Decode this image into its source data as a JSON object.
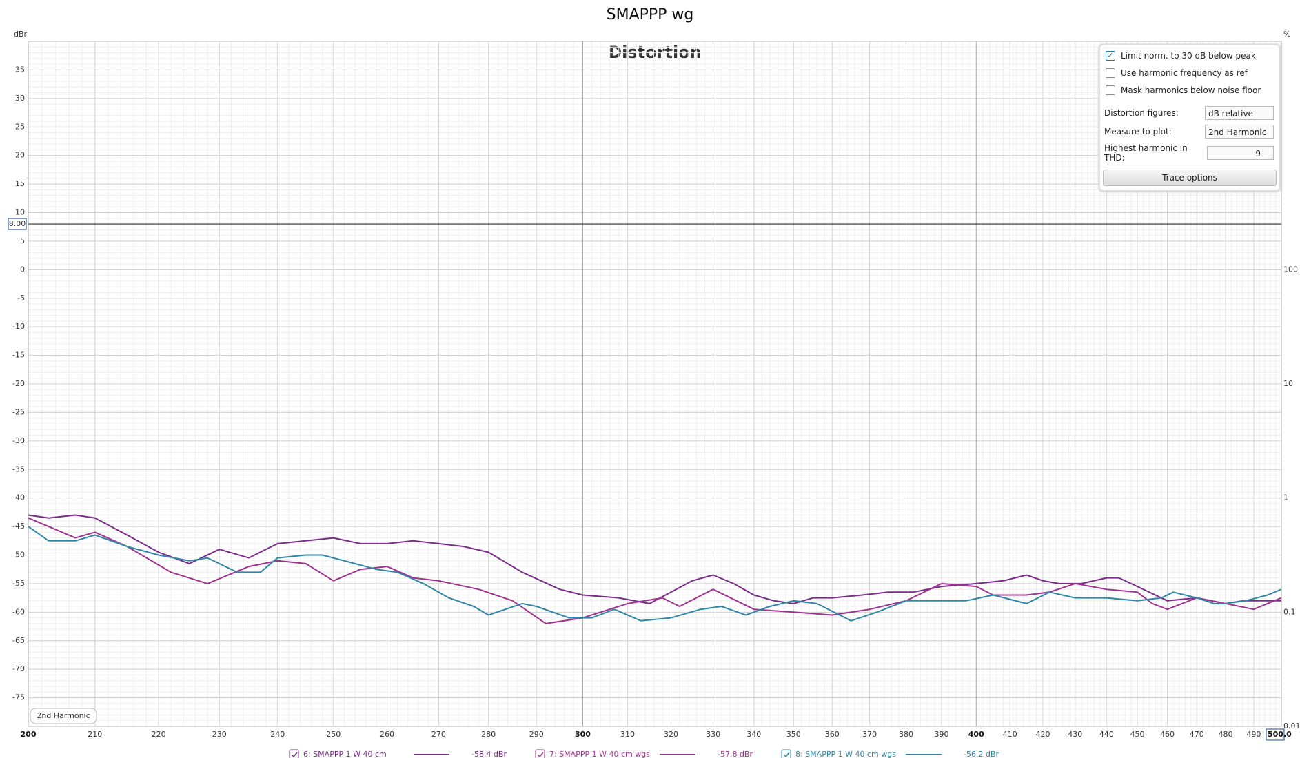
{
  "chart_data": {
    "type": "line",
    "title": "SMAPPP wg",
    "subtitle": "Distortion",
    "y_label": "dBr",
    "y2_label": "%",
    "curve_label": "2nd Harmonic",
    "xscale": "log",
    "y2scale": "log",
    "grid": true,
    "xlim": [
      200,
      500
    ],
    "ylim": [
      -80,
      40
    ],
    "y2lim": [
      0.01,
      10000
    ],
    "xticks": [
      200,
      210,
      220,
      230,
      240,
      250,
      260,
      270,
      280,
      290,
      300,
      310,
      320,
      330,
      340,
      350,
      360,
      370,
      380,
      390,
      400,
      410,
      420,
      430,
      440,
      450,
      460,
      470,
      480,
      490,
      {
        "value": 500,
        "label": "500.0"
      }
    ],
    "yticks": [
      -75,
      -70,
      -65,
      -60,
      -55,
      -50,
      -45,
      -40,
      -35,
      -30,
      -25,
      -20,
      -15,
      -10,
      -5,
      0,
      5,
      10,
      15,
      20,
      25,
      30,
      35
    ],
    "y2ticks": [
      0.01,
      0.1,
      1,
      10,
      100
    ],
    "cursor_y": {
      "value": 8,
      "label": "8.00"
    },
    "series": [
      {
        "name": "6: SMAPPP 1 W 40 cm",
        "readout": "-58.4 dBr",
        "color": "#7a2c88",
        "x": [
          200,
          203,
          207,
          210,
          215,
          220,
          225,
          230,
          235,
          240,
          245,
          250,
          255,
          260,
          265,
          270,
          275,
          280,
          287,
          295,
          300,
          308,
          315,
          320,
          325,
          330,
          335,
          340,
          345,
          350,
          355,
          360,
          368,
          375,
          382,
          390,
          400,
          408,
          415,
          420,
          425,
          432,
          440,
          444,
          450,
          460,
          470,
          480,
          486,
          490,
          500
        ],
        "values": [
          -43,
          -43.5,
          -43,
          -43.5,
          -46.5,
          -49.5,
          -51.5,
          -49,
          -50.5,
          -48,
          -47.5,
          -47,
          -48,
          -48,
          -47.5,
          -48,
          -48.5,
          -49.5,
          -53,
          -56,
          -57,
          -57.5,
          -58.5,
          -56.5,
          -54.5,
          -53.5,
          -55,
          -57,
          -58,
          -58.5,
          -57.5,
          -57.5,
          -57,
          -56.5,
          -56.5,
          -55.5,
          -55,
          -54.5,
          -53.5,
          -54.5,
          -55,
          -55,
          -54,
          -54,
          -55.5,
          -58,
          -57.5,
          -58.5,
          -58,
          -58,
          -58
        ]
      },
      {
        "name": "7: SMAPPP 1 W 40 cm wgs",
        "readout": "-57.8 dBr",
        "color": "#a0338f",
        "x": [
          200,
          203,
          207,
          210,
          215,
          222,
          228,
          235,
          240,
          245,
          250,
          255,
          260,
          265,
          270,
          278,
          285,
          292,
          300,
          310,
          318,
          322,
          330,
          340,
          350,
          360,
          370,
          380,
          390,
          400,
          405,
          415,
          422,
          430,
          440,
          450,
          455,
          460,
          470,
          480,
          490,
          500
        ],
        "values": [
          -43.5,
          -45,
          -47,
          -46,
          -48.5,
          -53,
          -55,
          -52,
          -51,
          -51.5,
          -54.5,
          -52.5,
          -52,
          -54,
          -54.5,
          -56,
          -58,
          -62,
          -61,
          -58.5,
          -57.5,
          -59,
          -56,
          -59.5,
          -60,
          -60.5,
          -59.5,
          -58,
          -55,
          -55.5,
          -57,
          -57,
          -56.5,
          -55,
          -56,
          -56.5,
          -58.5,
          -59.5,
          -57.5,
          -58.5,
          -59.5,
          -57.5
        ]
      },
      {
        "name": "8: SMAPPP 1 W 40 cm wgs",
        "readout": "-56.2 dBr",
        "color": "#2f86a6",
        "x": [
          200,
          203,
          207,
          210,
          215,
          220,
          225,
          228,
          233,
          237,
          240,
          245,
          248,
          252,
          258,
          262,
          267,
          272,
          277,
          280,
          287,
          290,
          297,
          302,
          307,
          313,
          320,
          327,
          332,
          338,
          344,
          350,
          356,
          365,
          372,
          380,
          390,
          397,
          405,
          415,
          422,
          430,
          440,
          450,
          458,
          462,
          470,
          476,
          480,
          487,
          495,
          500
        ],
        "values": [
          -45,
          -47.5,
          -47.5,
          -46.5,
          -48.5,
          -50,
          -51,
          -50.5,
          -53,
          -53,
          -50.5,
          -50,
          -50,
          -51,
          -52.5,
          -53,
          -55,
          -57.5,
          -59,
          -60.5,
          -58.5,
          -59,
          -61,
          -61,
          -59.5,
          -61.5,
          -61,
          -59.5,
          -59,
          -60.5,
          -59,
          -58,
          -58.5,
          -61.5,
          -60,
          -58,
          -58,
          -58,
          -57,
          -58.5,
          -56.5,
          -57.5,
          -57.5,
          -58,
          -57.5,
          -56.5,
          -57.5,
          -58.5,
          -58.5,
          -58,
          -57,
          -56
        ]
      }
    ]
  },
  "controls": {
    "checkboxes": [
      {
        "label": "Limit norm. to 30 dB below peak",
        "checked": true
      },
      {
        "label": "Use harmonic frequency as ref",
        "checked": false
      },
      {
        "label": "Mask harmonics below noise floor",
        "checked": false
      }
    ],
    "fields": [
      {
        "label": "Distortion figures:",
        "value": "dB relative"
      },
      {
        "label": "Measure to plot:",
        "value": "2nd Harmonic"
      },
      {
        "label": "Highest harmonic in THD:",
        "value": "9"
      }
    ],
    "button": "Trace options"
  }
}
